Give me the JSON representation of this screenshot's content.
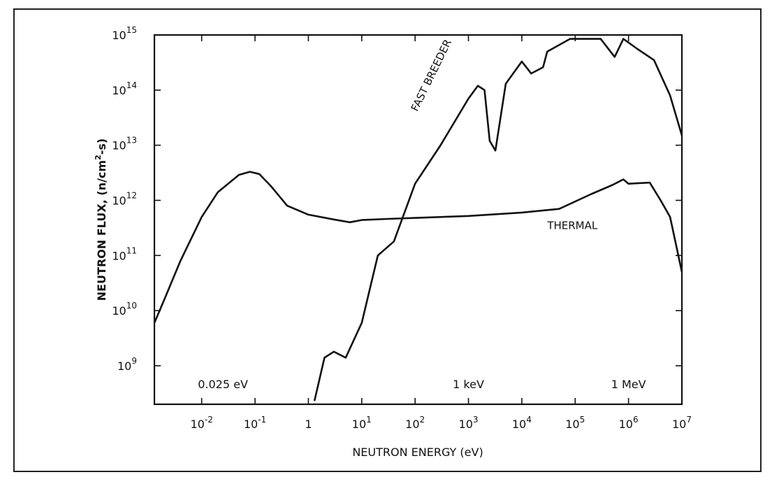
{
  "chart_data": {
    "type": "line",
    "xlabel": "NEUTRON ENERGY (eV)",
    "ylabel_main": "NEUTRON FLUX, (n/cm",
    "ylabel_sup": "2",
    "ylabel_end": "-s)",
    "x_scale": "log",
    "y_scale": "log",
    "xlim": [
      0.0013,
      10000000
    ],
    "ylim": [
      200000000,
      1000000000000000
    ],
    "grid": false,
    "x_ticks": [
      {
        "value": 0.01,
        "base": "10",
        "exp": "-2"
      },
      {
        "value": 0.1,
        "base": "10",
        "exp": "-1"
      },
      {
        "value": 1,
        "base": "1",
        "exp": ""
      },
      {
        "value": 10,
        "base": "10",
        "exp": "1"
      },
      {
        "value": 100,
        "base": "10",
        "exp": "2"
      },
      {
        "value": 1000,
        "base": "10",
        "exp": "3"
      },
      {
        "value": 10000,
        "base": "10",
        "exp": "4"
      },
      {
        "value": 100000,
        "base": "10",
        "exp": "5"
      },
      {
        "value": 1000000,
        "base": "10",
        "exp": "6"
      },
      {
        "value": 10000000,
        "base": "10",
        "exp": "7"
      }
    ],
    "y_ticks": [
      {
        "value": 1000000000,
        "base": "10",
        "exp": "9"
      },
      {
        "value": 10000000000,
        "base": "10",
        "exp": "10"
      },
      {
        "value": 100000000000,
        "base": "10",
        "exp": "11"
      },
      {
        "value": 1000000000000,
        "base": "10",
        "exp": "12"
      },
      {
        "value": 10000000000000,
        "base": "10",
        "exp": "13"
      },
      {
        "value": 100000000000000,
        "base": "10",
        "exp": "14"
      },
      {
        "value": 1000000000000000,
        "base": "10",
        "exp": "15"
      }
    ],
    "energy_markers": [
      {
        "text": "0.025 eV",
        "x": 0.025
      },
      {
        "text": "1 keV",
        "x": 1000
      },
      {
        "text": "1 MeV",
        "x": 1000000
      }
    ],
    "series": [
      {
        "name": "FAST BREEDER",
        "label_anchor": {
          "x": 110,
          "y": 40000000000000
        },
        "points": [
          [
            1.3,
            230000000
          ],
          [
            2,
            1400000000
          ],
          [
            3,
            1800000000
          ],
          [
            5,
            1400000000
          ],
          [
            10,
            6000000000
          ],
          [
            20,
            100000000000
          ],
          [
            40,
            180000000000
          ],
          [
            100,
            2000000000000
          ],
          [
            300,
            10000000000000
          ],
          [
            1000,
            70000000000000
          ],
          [
            1500,
            120000000000000
          ],
          [
            2000,
            100000000000000
          ],
          [
            2500,
            12000000000000
          ],
          [
            3200,
            8000000000000
          ],
          [
            5000,
            130000000000000
          ],
          [
            10000,
            330000000000000
          ],
          [
            15000,
            200000000000000
          ],
          [
            25000,
            260000000000000
          ],
          [
            30000,
            500000000000000
          ],
          [
            80000,
            850000000000000
          ],
          [
            300000,
            850000000000000
          ],
          [
            550000,
            400000000000000
          ],
          [
            800000,
            850000000000000
          ],
          [
            1500000,
            550000000000000
          ],
          [
            3000000,
            350000000000000
          ],
          [
            6000000,
            80000000000000
          ],
          [
            10000000,
            15000000000000
          ]
        ]
      },
      {
        "name": "THERMAL",
        "label_anchor": {
          "x": 30000,
          "y": 300000000000
        },
        "points": [
          [
            0.0013,
            6000000000
          ],
          [
            0.002,
            16000000000
          ],
          [
            0.004,
            80000000000
          ],
          [
            0.01,
            500000000000
          ],
          [
            0.02,
            1400000000000
          ],
          [
            0.05,
            2900000000000
          ],
          [
            0.08,
            3300000000000
          ],
          [
            0.12,
            3000000000000
          ],
          [
            0.2,
            1800000000000
          ],
          [
            0.4,
            800000000000
          ],
          [
            1,
            550000000000
          ],
          [
            3,
            450000000000
          ],
          [
            6,
            400000000000
          ],
          [
            10,
            440000000000
          ],
          [
            30,
            460000000000
          ],
          [
            100,
            480000000000
          ],
          [
            1000,
            520000000000
          ],
          [
            10000,
            600000000000
          ],
          [
            50000,
            700000000000
          ],
          [
            200000,
            1300000000000
          ],
          [
            500000,
            1900000000000
          ],
          [
            800000,
            2400000000000
          ],
          [
            1000000,
            2000000000000
          ],
          [
            2500000,
            2100000000000
          ],
          [
            4000000,
            1000000000000
          ],
          [
            6000000,
            500000000000
          ],
          [
            10000000,
            50000000000
          ]
        ]
      }
    ]
  }
}
